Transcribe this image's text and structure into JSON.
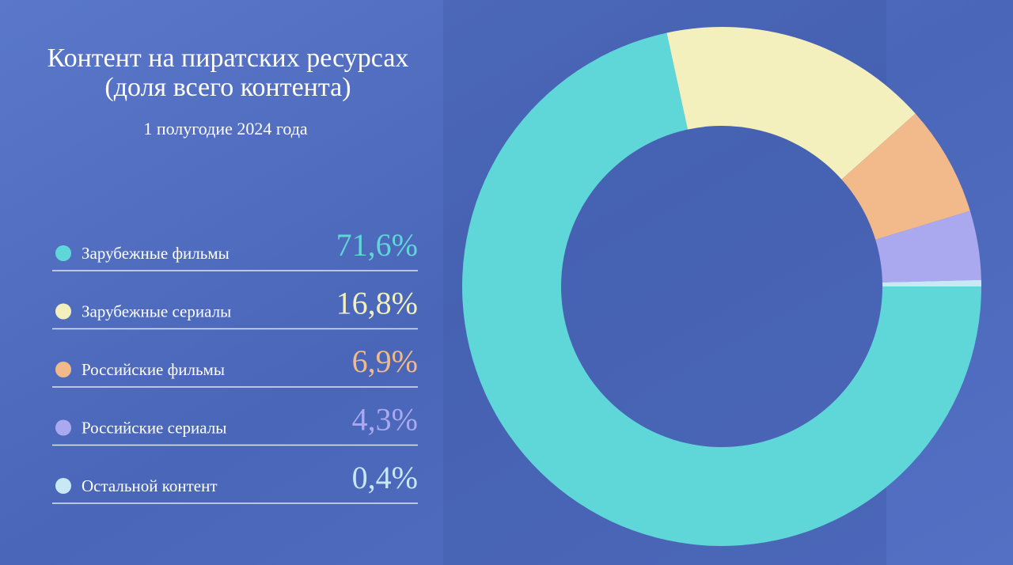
{
  "chart_data": {
    "type": "pie",
    "title": [
      "Контент на пиратских ресурсах",
      "(доля всего контента)"
    ],
    "subtitle": "1 полугодие 2024 года",
    "categories": [
      "Зарубежные фильмы",
      "Зарубежные сериалы",
      "Российские фильмы",
      "Российские сериалы",
      "Остальной контент"
    ],
    "values": [
      71.6,
      16.8,
      6.9,
      4.3,
      0.4
    ],
    "value_labels": [
      "71,6%",
      "16,8%",
      "6,9%",
      "4,3%",
      "0,4%"
    ],
    "colors": [
      "#5fd6d8",
      "#f3f0bd",
      "#f2b98a",
      "#aaa9f0",
      "#c8e8f6"
    ]
  }
}
